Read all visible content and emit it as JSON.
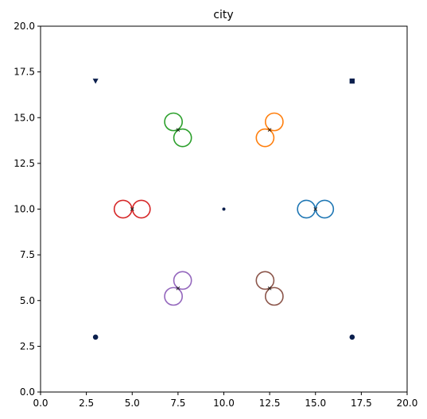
{
  "chart_data": {
    "type": "scatter",
    "title": "city",
    "xlabel": "",
    "ylabel": "",
    "xlim": [
      0,
      20
    ],
    "ylim": [
      0,
      20
    ],
    "grid": false,
    "x_ticks": [
      "0.0",
      "2.5",
      "5.0",
      "7.5",
      "10.0",
      "12.5",
      "15.0",
      "17.5",
      "20.0"
    ],
    "y_ticks": [
      "0.0",
      "2.5",
      "5.0",
      "7.5",
      "10.0",
      "12.5",
      "15.0",
      "17.5",
      "20.0"
    ],
    "fixed_points": [
      {
        "marker": "triangle-down",
        "x": 3,
        "y": 17,
        "color": "#0b1f4d"
      },
      {
        "marker": "square",
        "x": 17,
        "y": 17,
        "color": "#0b1f4d"
      },
      {
        "marker": "dot-small",
        "x": 10,
        "y": 10,
        "color": "#0b1f4d"
      },
      {
        "marker": "circle",
        "x": 3,
        "y": 3,
        "color": "#0b1f4d"
      },
      {
        "marker": "circle",
        "x": 17,
        "y": 3,
        "color": "#0b1f4d"
      }
    ],
    "pairs": [
      {
        "color": "#1f77b4",
        "center": [
          15.0,
          10.0
        ],
        "circles": [
          [
            14.5,
            10.0
          ],
          [
            15.5,
            10.0
          ]
        ]
      },
      {
        "color": "#ff7f0e",
        "center": [
          12.5,
          14.33
        ],
        "circles": [
          [
            12.75,
            14.77
          ],
          [
            12.25,
            13.9
          ]
        ]
      },
      {
        "color": "#2ca02c",
        "center": [
          7.5,
          14.33
        ],
        "circles": [
          [
            7.25,
            14.77
          ],
          [
            7.75,
            13.9
          ]
        ]
      },
      {
        "color": "#d62728",
        "center": [
          5.0,
          10.0
        ],
        "circles": [
          [
            4.5,
            10.0
          ],
          [
            5.5,
            10.0
          ]
        ]
      },
      {
        "color": "#9467bd",
        "center": [
          7.5,
          5.67
        ],
        "circles": [
          [
            7.75,
            6.1
          ],
          [
            7.25,
            5.23
          ]
        ]
      },
      {
        "color": "#8c564b",
        "center": [
          12.5,
          5.67
        ],
        "circles": [
          [
            12.25,
            6.1
          ],
          [
            12.75,
            5.23
          ]
        ]
      }
    ],
    "circle_radius": 0.48
  }
}
